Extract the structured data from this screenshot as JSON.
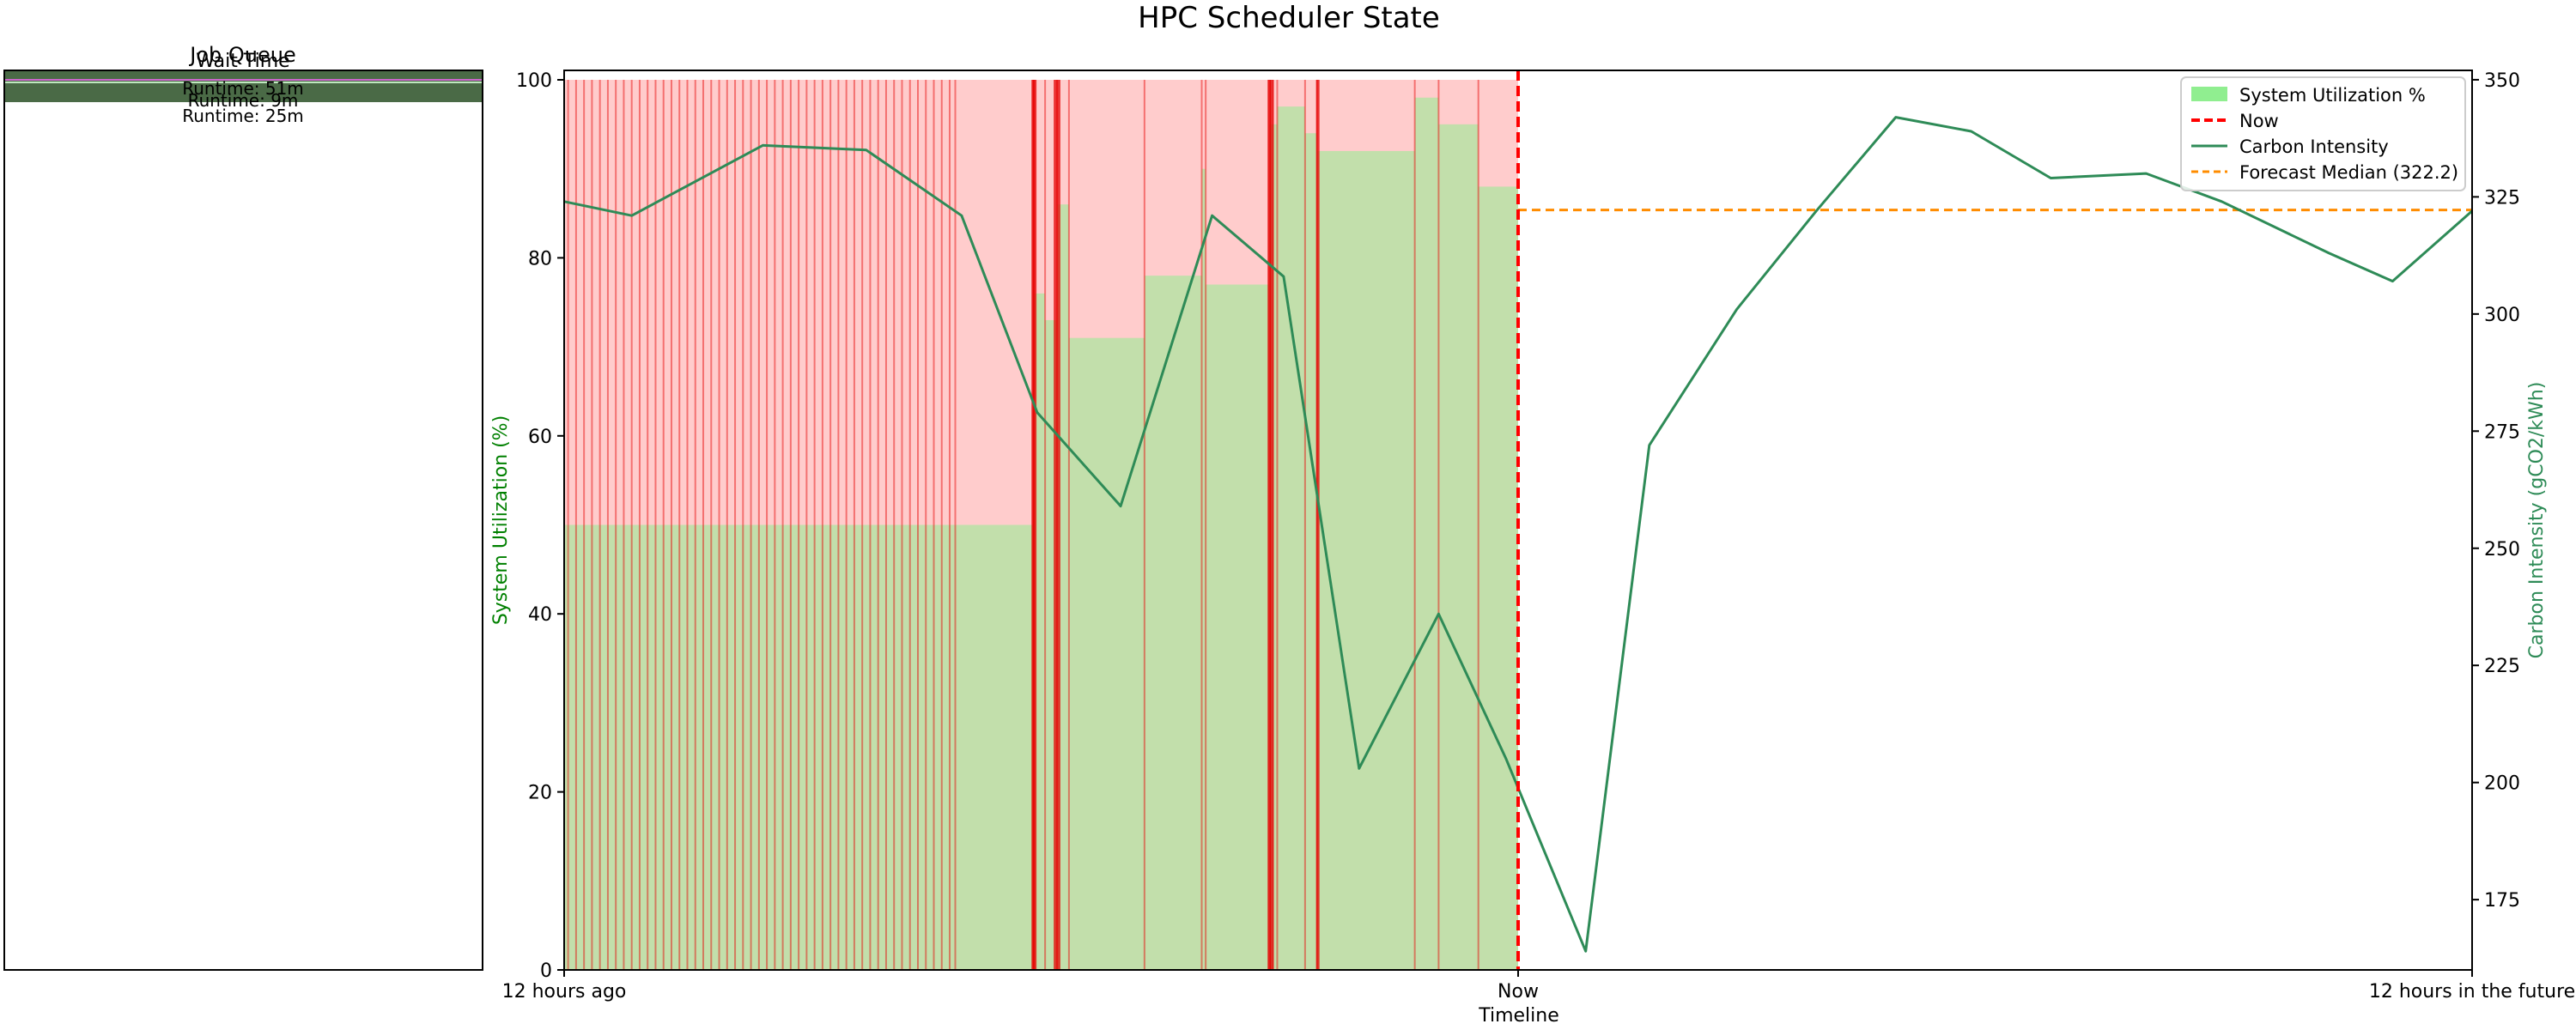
{
  "figure_title": "HPC Scheduler State",
  "queue_panel": {
    "title": "Job Queue",
    "overlapping_labels": [
      "Job Queue",
      "Wait Time",
      "Runtime: 51m",
      "Runtime: 9m",
      "Runtime: 25m"
    ]
  },
  "colors": {
    "utilization_fill": "#90ee90",
    "busy_fill": "#ffcccc",
    "job_lines": "#e60000",
    "carbon_line": "#2e8b57",
    "forecast_line": "#ff8c00",
    "now_line": "#ff0000",
    "queue_bar": "#4a6a46"
  },
  "chart_data": {
    "type": "area",
    "title": "HPC Scheduler State",
    "xlabel": "Timeline",
    "ylabel_left": "System Utilization (%)",
    "ylabel_right": "Carbon Intensity (gCO2/kWh)",
    "x_ticks": [
      "12 hours ago",
      "Now",
      "12 hours in the future"
    ],
    "x_range_hours": [
      -12,
      12
    ],
    "y_left_range": [
      0,
      100
    ],
    "y_left_ticks": [
      0,
      20,
      40,
      60,
      80,
      100
    ],
    "y_right_range": [
      160,
      352
    ],
    "y_right_ticks": [
      175,
      200,
      225,
      250,
      275,
      300,
      325,
      350
    ],
    "legend_position": "top-right",
    "legend": [
      "System Utilization %",
      "Now",
      "Carbon Intensity",
      "Forecast Median (322.2)"
    ],
    "grid": false,
    "now_x": 0,
    "forecast_median": 322.2,
    "utilization_steps": [
      {
        "x0": -12.0,
        "x1": -7.08,
        "value": 50
      },
      {
        "x0": -7.08,
        "x1": -6.1,
        "value": 50
      },
      {
        "x0": -6.1,
        "x1": -5.95,
        "value": 76
      },
      {
        "x0": -5.95,
        "x1": -5.8,
        "value": 73
      },
      {
        "x0": -5.8,
        "x1": -5.65,
        "value": 86
      },
      {
        "x0": -5.65,
        "x1": -4.7,
        "value": 71
      },
      {
        "x0": -4.7,
        "x1": -3.98,
        "value": 78
      },
      {
        "x0": -3.98,
        "x1": -3.93,
        "value": 90
      },
      {
        "x0": -3.93,
        "x1": -3.13,
        "value": 77
      },
      {
        "x0": -3.13,
        "x1": -3.03,
        "value": 95
      },
      {
        "x0": -3.03,
        "x1": -2.68,
        "value": 97
      },
      {
        "x0": -2.68,
        "x1": -2.53,
        "value": 94
      },
      {
        "x0": -2.53,
        "x1": -1.3,
        "value": 92
      },
      {
        "x0": -1.3,
        "x1": -1.0,
        "value": 98
      },
      {
        "x0": -1.0,
        "x1": -0.5,
        "value": 95
      },
      {
        "x0": -0.5,
        "x1": 0.0,
        "value": 88
      }
    ],
    "busy_region": {
      "x0": -12,
      "x1": 0,
      "value": 100
    },
    "job_start_lines": [
      -11.95,
      -11.85,
      -11.75,
      -11.65,
      -11.55,
      -11.45,
      -11.35,
      -11.25,
      -11.15,
      -11.05,
      -10.95,
      -10.85,
      -10.75,
      -10.65,
      -10.55,
      -10.45,
      -10.35,
      -10.25,
      -10.15,
      -10.05,
      -9.95,
      -9.85,
      -9.75,
      -9.65,
      -9.55,
      -9.45,
      -9.35,
      -9.25,
      -9.15,
      -9.05,
      -8.95,
      -8.85,
      -8.75,
      -8.65,
      -8.55,
      -8.45,
      -8.35,
      -8.25,
      -8.15,
      -8.05,
      -7.95,
      -7.85,
      -7.75,
      -7.65,
      -7.55,
      -7.45,
      -7.35,
      -7.25,
      -7.15,
      -7.08,
      -6.1,
      -5.95,
      -5.8,
      -5.65,
      -4.7,
      -3.98,
      -3.93,
      -3.13,
      -3.08,
      -3.03,
      -2.68,
      -2.53,
      -1.3,
      -1.0,
      -0.5
    ],
    "job_start_lines_bold": [
      -6.1,
      -6.08,
      -5.82,
      -5.78,
      -3.13,
      -3.1,
      -2.52
    ],
    "carbon_intensity": {
      "name": "Carbon Intensity",
      "x": [
        -12,
        -11.15,
        -9.5,
        -8.2,
        -7.0,
        -6.05,
        -5.0,
        -3.85,
        -2.95,
        -2.0,
        -1.0,
        -0.15,
        0.85,
        1.65,
        2.75,
        3.75,
        4.75,
        5.7,
        6.7,
        7.9,
        8.85,
        10.2,
        11.0,
        12.0
      ],
      "y": [
        324,
        321,
        336,
        335,
        321,
        279,
        259,
        321,
        308,
        203,
        236,
        205,
        164,
        272,
        301,
        322,
        342,
        339,
        329,
        330,
        324,
        313,
        307,
        322
      ]
    }
  }
}
